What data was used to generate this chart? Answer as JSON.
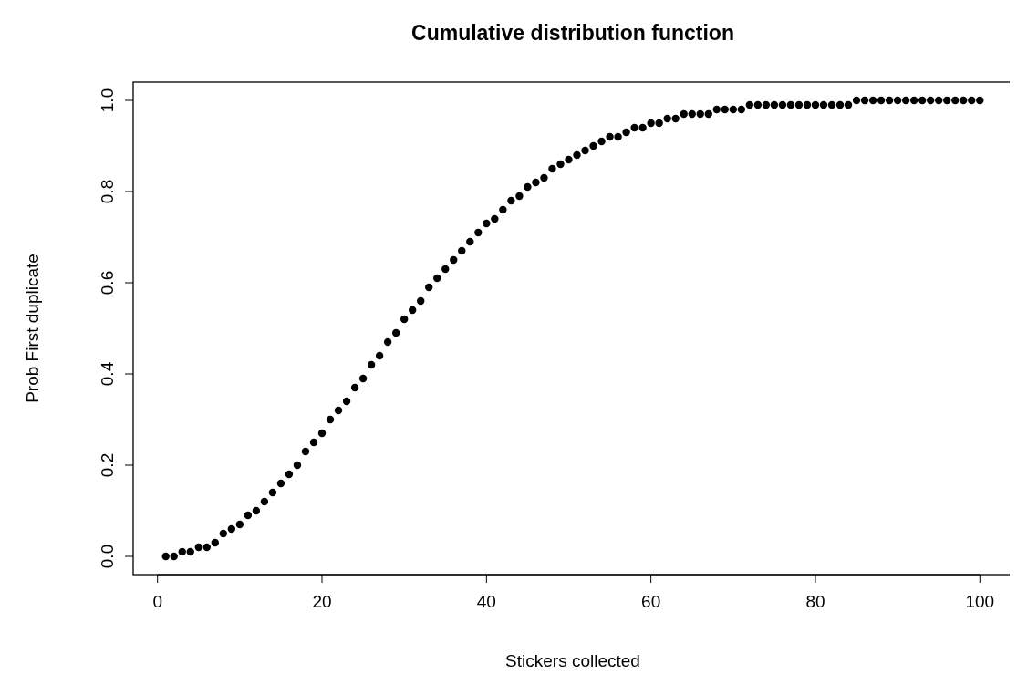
{
  "chart_data": {
    "type": "scatter",
    "title": "Cumulative distribution function",
    "xlabel": "Stickers collected",
    "ylabel": "Prob First duplicate",
    "marker": "circle",
    "grid": false,
    "x": [
      1,
      2,
      3,
      4,
      5,
      6,
      7,
      8,
      9,
      10,
      11,
      12,
      13,
      14,
      15,
      16,
      17,
      18,
      19,
      20,
      21,
      22,
      23,
      24,
      25,
      26,
      27,
      28,
      29,
      30,
      31,
      32,
      33,
      34,
      35,
      36,
      37,
      38,
      39,
      40,
      41,
      42,
      43,
      44,
      45,
      46,
      47,
      48,
      49,
      50,
      51,
      52,
      53,
      54,
      55,
      56,
      57,
      58,
      59,
      60,
      61,
      62,
      63,
      64,
      65,
      66,
      67,
      68,
      69,
      70,
      71,
      72,
      73,
      74,
      75,
      76,
      77,
      78,
      79,
      80,
      81,
      82,
      83,
      84,
      85,
      86,
      87,
      88,
      89,
      90,
      91,
      92,
      93,
      94,
      95,
      96,
      97,
      98,
      99,
      100
    ],
    "series": [
      {
        "color": "#000000",
        "values": [
          0,
          0,
          0.01,
          0.01,
          0.02,
          0.02,
          0.03,
          0.05,
          0.06,
          0.07,
          0.09,
          0.1,
          0.12,
          0.14,
          0.16,
          0.18,
          0.2,
          0.23,
          0.25,
          0.27,
          0.3,
          0.32,
          0.34,
          0.37,
          0.39,
          0.42,
          0.44,
          0.47,
          0.49,
          0.52,
          0.54,
          0.56,
          0.59,
          0.61,
          0.63,
          0.65,
          0.67,
          0.69,
          0.71,
          0.73,
          0.74,
          0.76,
          0.78,
          0.79,
          0.81,
          0.82,
          0.83,
          0.85,
          0.86,
          0.87,
          0.88,
          0.89,
          0.9,
          0.91,
          0.92,
          0.92,
          0.93,
          0.94,
          0.94,
          0.95,
          0.95,
          0.96,
          0.96,
          0.97,
          0.97,
          0.97,
          0.97,
          0.98,
          0.98,
          0.98,
          0.98,
          0.99,
          0.99,
          0.99,
          0.99,
          0.99,
          0.99,
          0.99,
          0.99,
          0.99,
          0.99,
          0.99,
          0.99,
          0.99,
          1,
          1,
          1,
          1,
          1,
          1,
          1,
          1,
          1,
          1,
          1,
          1,
          1,
          1,
          1,
          1
        ]
      }
    ],
    "xlim": [
      -2.96,
      103.96
    ],
    "ylim": [
      -0.04,
      1.04
    ],
    "xticks": [
      0,
      20,
      40,
      60,
      80,
      100
    ],
    "yticks": [
      {
        "value": 0,
        "label": "0.0"
      },
      {
        "value": 0.2,
        "label": "0.2"
      },
      {
        "value": 0.4,
        "label": "0.4"
      },
      {
        "value": 0.6,
        "label": "0.6"
      },
      {
        "value": 0.8,
        "label": "0.8"
      },
      {
        "value": 1,
        "label": "1.0"
      }
    ]
  }
}
